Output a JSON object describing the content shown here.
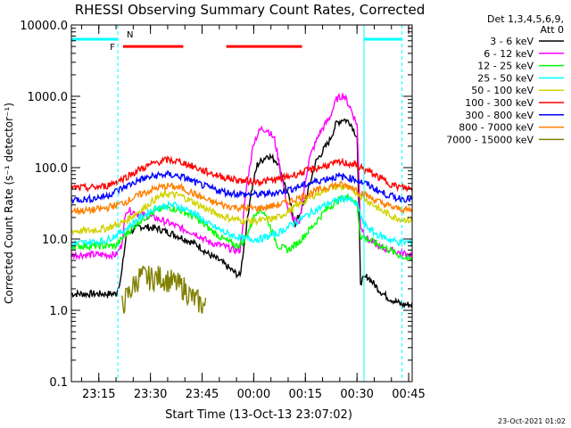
{
  "chart_data": {
    "type": "line",
    "title": "RHESSI Observing Summary Count Rates, Corrected",
    "xlabel": "Start Time (13-Oct-13 23:07:02)",
    "ylabel": "Corrected Count Rate (s⁻¹ detector⁻¹)",
    "y_scale": "log",
    "ylim": [
      0.1,
      10000
    ],
    "xlim_minutes": [
      0,
      99
    ],
    "x_ticks": [
      {
        "label": "23:15",
        "m": 7.97
      },
      {
        "label": "23:30",
        "m": 22.97
      },
      {
        "label": "23:45",
        "m": 37.97
      },
      {
        "label": "00:00",
        "m": 52.97
      },
      {
        "label": "00:15",
        "m": 67.97
      },
      {
        "label": "00:30",
        "m": 82.97
      },
      {
        "label": "00:45",
        "m": 97.97
      }
    ],
    "y_ticks": [
      "0.1",
      "1.0",
      "10.0",
      "100.0",
      "1000.0",
      "10000.0"
    ],
    "legend": {
      "position": "right",
      "header": [
        "Det 1,3,4,5,6,9,",
        "Att 0"
      ],
      "entries": [
        {
          "label": "3 - 6 keV",
          "color": "#000000"
        },
        {
          "label": "6 - 12 keV",
          "color": "#ff00ff"
        },
        {
          "label": "12 - 25 keV",
          "color": "#00ff00"
        },
        {
          "label": "25 - 50 keV",
          "color": "#00ffff"
        },
        {
          "label": "50 - 100 keV",
          "color": "#d2d200"
        },
        {
          "label": "100 - 300 keV",
          "color": "#ff0000"
        },
        {
          "label": "300 - 800 keV",
          "color": "#0000ff"
        },
        {
          "label": "800 - 7000 keV",
          "color": "#ff7f00"
        },
        {
          "label": "7000 - 15000 keV",
          "color": "#808000"
        }
      ]
    },
    "series": [
      {
        "name": "3 - 6 keV",
        "color": "#000000",
        "points": [
          [
            0,
            1.7
          ],
          [
            13,
            1.7
          ],
          [
            14.5,
            3.0
          ],
          [
            16,
            12
          ],
          [
            20,
            15
          ],
          [
            25,
            14
          ],
          [
            29,
            12
          ],
          [
            33,
            10
          ],
          [
            37,
            8
          ],
          [
            40,
            6
          ],
          [
            43,
            5
          ],
          [
            47,
            3.5
          ],
          [
            49,
            3.0
          ],
          [
            52,
            40
          ],
          [
            54,
            110
          ],
          [
            57,
            150
          ],
          [
            60,
            120
          ],
          [
            63,
            40
          ],
          [
            65,
            16
          ],
          [
            68,
            35
          ],
          [
            71,
            120
          ],
          [
            75,
            240
          ],
          [
            77,
            420
          ],
          [
            79,
            480
          ],
          [
            81,
            430
          ],
          [
            83,
            270
          ],
          [
            84,
            2.5
          ],
          [
            86,
            3.0
          ],
          [
            88,
            2.3
          ],
          [
            90,
            1.8
          ],
          [
            92,
            1.5
          ],
          [
            96,
            1.2
          ],
          [
            99,
            1.2
          ]
        ]
      },
      {
        "name": "6 - 12 keV",
        "color": "#ff00ff",
        "points": [
          [
            0,
            6
          ],
          [
            13,
            6
          ],
          [
            14.5,
            8
          ],
          [
            16,
            26
          ],
          [
            20,
            22
          ],
          [
            24,
            20
          ],
          [
            28,
            17
          ],
          [
            32,
            14
          ],
          [
            36,
            12
          ],
          [
            40,
            9
          ],
          [
            44,
            8
          ],
          [
            47,
            7
          ],
          [
            49,
            7
          ],
          [
            51,
            60
          ],
          [
            53,
            230
          ],
          [
            55,
            350
          ],
          [
            57,
            340
          ],
          [
            59,
            250
          ],
          [
            61,
            80
          ],
          [
            63,
            25
          ],
          [
            66,
            15
          ],
          [
            69,
            130
          ],
          [
            72,
            300
          ],
          [
            75,
            500
          ],
          [
            77,
            900
          ],
          [
            79,
            1050
          ],
          [
            81,
            700
          ],
          [
            83,
            400
          ],
          [
            84,
            15
          ],
          [
            86,
            10
          ],
          [
            90,
            7.5
          ],
          [
            95,
            6.5
          ],
          [
            99,
            6
          ]
        ]
      },
      {
        "name": "12 - 25 keV",
        "color": "#00ff00",
        "points": [
          [
            0,
            8
          ],
          [
            13,
            8
          ],
          [
            16,
            12
          ],
          [
            20,
            18
          ],
          [
            24,
            24
          ],
          [
            28,
            28
          ],
          [
            32,
            25
          ],
          [
            36,
            20
          ],
          [
            40,
            14
          ],
          [
            44,
            10
          ],
          [
            48,
            8
          ],
          [
            50,
            9
          ],
          [
            52,
            15
          ],
          [
            54,
            26
          ],
          [
            56,
            24
          ],
          [
            58,
            14
          ],
          [
            60,
            8
          ],
          [
            63,
            7
          ],
          [
            66,
            9
          ],
          [
            70,
            15
          ],
          [
            74,
            26
          ],
          [
            78,
            36
          ],
          [
            81,
            40
          ],
          [
            83,
            30
          ],
          [
            84,
            11
          ],
          [
            86,
            10
          ],
          [
            90,
            8
          ],
          [
            95,
            6
          ],
          [
            99,
            5
          ]
        ]
      },
      {
        "name": "25 - 50 keV",
        "color": "#00ffff",
        "points": [
          [
            0,
            8.5
          ],
          [
            10,
            9.5
          ],
          [
            15,
            13
          ],
          [
            20,
            20
          ],
          [
            25,
            28
          ],
          [
            30,
            30
          ],
          [
            35,
            24
          ],
          [
            40,
            16
          ],
          [
            45,
            12
          ],
          [
            50,
            10
          ],
          [
            55,
            10
          ],
          [
            60,
            12
          ],
          [
            65,
            17
          ],
          [
            70,
            24
          ],
          [
            75,
            32
          ],
          [
            80,
            38
          ],
          [
            83,
            30
          ],
          [
            85,
            16
          ],
          [
            88,
            12
          ],
          [
            92,
            10
          ],
          [
            95,
            9
          ],
          [
            99,
            9
          ]
        ]
      },
      {
        "name": "50 - 100 keV",
        "color": "#d2d200",
        "points": [
          [
            0,
            13
          ],
          [
            5,
            13
          ],
          [
            10,
            14
          ],
          [
            15,
            17
          ],
          [
            20,
            25
          ],
          [
            25,
            38
          ],
          [
            28,
            43
          ],
          [
            32,
            40
          ],
          [
            36,
            32
          ],
          [
            40,
            25
          ],
          [
            45,
            20
          ],
          [
            50,
            18
          ],
          [
            55,
            18
          ],
          [
            60,
            20
          ],
          [
            65,
            28
          ],
          [
            70,
            40
          ],
          [
            75,
            52
          ],
          [
            78,
            55
          ],
          [
            82,
            48
          ],
          [
            86,
            35
          ],
          [
            90,
            25
          ],
          [
            94,
            20
          ],
          [
            99,
            18
          ]
        ]
      },
      {
        "name": "100 - 300 keV",
        "color": "#ff0000",
        "points": [
          [
            0,
            52
          ],
          [
            5,
            52
          ],
          [
            10,
            55
          ],
          [
            15,
            70
          ],
          [
            20,
            95
          ],
          [
            25,
            120
          ],
          [
            28,
            128
          ],
          [
            32,
            120
          ],
          [
            36,
            100
          ],
          [
            40,
            85
          ],
          [
            45,
            72
          ],
          [
            50,
            65
          ],
          [
            55,
            64
          ],
          [
            60,
            68
          ],
          [
            65,
            80
          ],
          [
            70,
            95
          ],
          [
            75,
            110
          ],
          [
            78,
            118
          ],
          [
            82,
            112
          ],
          [
            86,
            90
          ],
          [
            90,
            70
          ],
          [
            94,
            55
          ],
          [
            99,
            50
          ]
        ]
      },
      {
        "name": "300 - 800 keV",
        "color": "#0000ff",
        "points": [
          [
            0,
            36
          ],
          [
            5,
            36
          ],
          [
            10,
            40
          ],
          [
            15,
            52
          ],
          [
            20,
            68
          ],
          [
            25,
            78
          ],
          [
            28,
            80
          ],
          [
            32,
            75
          ],
          [
            36,
            62
          ],
          [
            40,
            52
          ],
          [
            45,
            45
          ],
          [
            50,
            42
          ],
          [
            55,
            42
          ],
          [
            60,
            45
          ],
          [
            65,
            52
          ],
          [
            70,
            62
          ],
          [
            75,
            72
          ],
          [
            78,
            75
          ],
          [
            82,
            70
          ],
          [
            86,
            58
          ],
          [
            90,
            45
          ],
          [
            94,
            38
          ],
          [
            99,
            36
          ]
        ]
      },
      {
        "name": "800 - 7000 keV",
        "color": "#ff7f00",
        "points": [
          [
            0,
            25
          ],
          [
            5,
            25
          ],
          [
            10,
            27
          ],
          [
            15,
            32
          ],
          [
            20,
            42
          ],
          [
            25,
            52
          ],
          [
            28,
            55
          ],
          [
            32,
            52
          ],
          [
            36,
            42
          ],
          [
            40,
            34
          ],
          [
            45,
            29
          ],
          [
            50,
            27
          ],
          [
            55,
            27
          ],
          [
            60,
            30
          ],
          [
            65,
            36
          ],
          [
            70,
            45
          ],
          [
            75,
            55
          ],
          [
            78,
            58
          ],
          [
            82,
            52
          ],
          [
            86,
            40
          ],
          [
            90,
            32
          ],
          [
            94,
            27
          ],
          [
            99,
            25
          ]
        ]
      },
      {
        "name": "7000 - 15000 keV",
        "color": "#808000",
        "points": [
          [
            14.5,
            1.1
          ],
          [
            16,
            1.5
          ],
          [
            18,
            2.2
          ],
          [
            20,
            3.0
          ],
          [
            23,
            2.8
          ],
          [
            26,
            2.9
          ],
          [
            30,
            2.4
          ],
          [
            33,
            2.0
          ],
          [
            35,
            1.5
          ],
          [
            37,
            1.3
          ],
          [
            39,
            1.1
          ]
        ]
      }
    ],
    "bars": {
      "saa_cyan": [
        [
          0,
          13.5
        ],
        [
          85,
          96
        ]
      ],
      "flare_red": [
        [
          15,
          32.5
        ],
        [
          45,
          67
        ]
      ],
      "markers": [
        {
          "label": "F",
          "color": "#ff0000",
          "m": 13
        },
        {
          "label": "N",
          "color": "#00ffff",
          "m": 14.5
        }
      ]
    },
    "vlines": [
      {
        "m": 0,
        "color": "#00ffff",
        "style": "solid"
      },
      {
        "m": 13.5,
        "color": "#00ffff",
        "style": "dashed"
      },
      {
        "m": 85,
        "color": "#00ffff",
        "style": "solid"
      },
      {
        "m": 96,
        "color": "#00ffff",
        "style": "dashed"
      }
    ],
    "grid": false,
    "timestamp": "23-Oct-2021 01:02"
  }
}
